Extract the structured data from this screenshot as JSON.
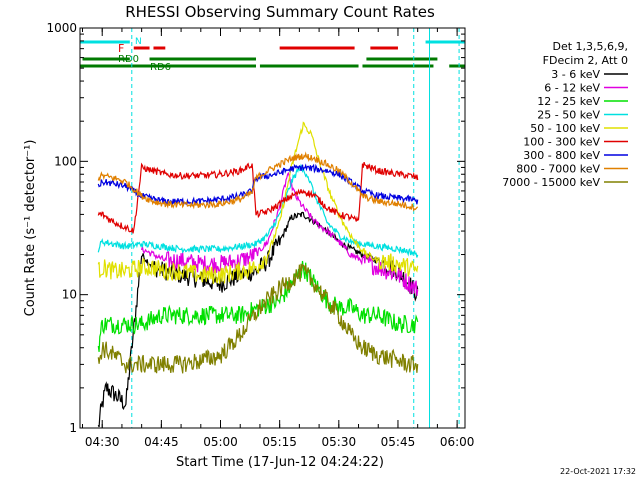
{
  "chart_data": {
    "type": "line",
    "title": "RHESSI Observing Summary Count Rates",
    "xlabel": "Start Time (17-Jun-12 04:24:22)",
    "ylabel": "Count Rate (s⁻¹ detector⁻¹)",
    "xlim": [
      "04:24:22",
      "06:02:00"
    ],
    "ylim": [
      1,
      1000
    ],
    "yscale": "log",
    "x_ticks": [
      "04:30",
      "04:45",
      "05:00",
      "05:15",
      "05:30",
      "05:45",
      "06:00"
    ],
    "y_ticks": [
      "1",
      "10",
      "100",
      "1000"
    ],
    "grid": false,
    "legend_header": [
      "Det 1,3,5,6,9,",
      "FDecim 2, Att 0"
    ],
    "legend_position": "right",
    "footer_date": "22-Oct-2021 17:32",
    "flags": {
      "labels": [
        "N",
        "F",
        "RD0",
        "RD6"
      ],
      "night_color": "#00e0e0",
      "flare_color": "#e00000",
      "decim_color": "#007a00",
      "night_segments": [
        [
          "04:24:22",
          "04:37:00"
        ],
        [
          "05:52:00",
          "06:02:00"
        ]
      ],
      "flare_segments": [
        [
          "04:38:00",
          "04:42:00"
        ],
        [
          "04:43:00",
          "04:46:00"
        ],
        [
          "05:15:00",
          "05:34:00"
        ],
        [
          "05:38:00",
          "05:45:00"
        ]
      ],
      "rd0_segments": [
        [
          "04:25:00",
          "04:37:00"
        ],
        [
          "04:42:00",
          "05:09:00"
        ],
        [
          "05:37:00",
          "05:55:00"
        ]
      ],
      "rd6_segments": [
        [
          "04:24:22",
          "05:09:00"
        ],
        [
          "05:10:00",
          "05:35:00"
        ],
        [
          "05:36:00",
          "05:54:00"
        ],
        [
          "05:58:00",
          "06:02:00"
        ]
      ]
    },
    "vlines": {
      "solid": [
        "04:24:22",
        "05:53:00",
        "06:02:00"
      ],
      "dashed": [
        "04:37:30",
        "05:49:00",
        "06:00:30"
      ]
    },
    "series": [
      {
        "name": "3 - 6 keV",
        "color": "#000000",
        "x": [
          "04:29",
          "04:30",
          "04:31",
          "04:33",
          "04:36",
          "04:40",
          "04:43",
          "04:46",
          "04:50",
          "04:55",
          "05:00",
          "05:05",
          "05:09",
          "05:12",
          "05:15",
          "05:18",
          "05:21",
          "05:24",
          "05:27",
          "05:30",
          "05:33",
          "05:36",
          "05:40",
          "05:45",
          "05:48",
          "05:50"
        ],
        "y": [
          1,
          1.5,
          2,
          1.8,
          1.5,
          20,
          16,
          15,
          14,
          13,
          12,
          14,
          15,
          18,
          25,
          38,
          40,
          35,
          30,
          25,
          22,
          20,
          18,
          15,
          12,
          10
        ]
      },
      {
        "name": "6 - 12 keV",
        "color": "#e000e0",
        "x": [
          "04:40",
          "04:43",
          "04:46",
          "04:50",
          "04:55",
          "05:00",
          "05:05",
          "05:09",
          "05:12",
          "05:15",
          "05:17",
          "05:19",
          "05:21",
          "05:24",
          "05:27",
          "05:30",
          "05:33",
          "05:36",
          "05:40",
          "05:45",
          "05:48",
          "05:50"
        ],
        "y": [
          22,
          20,
          18,
          18,
          17,
          17,
          18,
          20,
          25,
          45,
          80,
          55,
          45,
          35,
          30,
          25,
          20,
          18,
          16,
          14,
          12,
          11
        ]
      },
      {
        "name": "12 - 25 keV",
        "color": "#00e000",
        "x": [
          "04:29",
          "04:30",
          "04:33",
          "04:36",
          "04:40",
          "04:45",
          "04:50",
          "04:55",
          "05:00",
          "05:05",
          "05:10",
          "05:15",
          "05:18",
          "05:21",
          "05:24",
          "05:27",
          "05:30",
          "05:33",
          "05:36",
          "05:40",
          "05:45",
          "05:48",
          "05:50"
        ],
        "y": [
          4,
          6,
          6,
          6,
          6,
          7,
          7,
          7,
          7,
          7,
          8,
          9,
          12,
          16,
          12,
          9,
          8,
          8,
          7,
          7,
          6,
          6,
          6
        ]
      },
      {
        "name": "25 - 50 keV",
        "color": "#00e0e0",
        "x": [
          "04:29",
          "04:30",
          "04:33",
          "04:36",
          "04:40",
          "04:45",
          "04:50",
          "04:55",
          "05:00",
          "05:05",
          "05:09",
          "05:12",
          "05:15",
          "05:18",
          "05:20",
          "05:22",
          "05:24",
          "05:27",
          "05:30",
          "05:33",
          "05:36",
          "05:40",
          "05:45",
          "05:48",
          "05:50"
        ],
        "y": [
          22,
          25,
          24,
          23,
          24,
          23,
          22,
          22,
          22,
          23,
          24,
          28,
          40,
          70,
          90,
          80,
          55,
          35,
          28,
          25,
          24,
          23,
          22,
          21,
          20
        ]
      },
      {
        "name": "50 - 100 keV",
        "color": "#e0e000",
        "x": [
          "04:29",
          "04:30",
          "04:33",
          "04:36",
          "04:40",
          "04:43",
          "04:46",
          "04:50",
          "04:55",
          "05:00",
          "05:05",
          "05:09",
          "05:12",
          "05:15",
          "05:18",
          "05:20",
          "05:21",
          "05:23",
          "05:25",
          "05:28",
          "05:31",
          "05:34",
          "05:37",
          "05:40",
          "05:45",
          "05:48",
          "05:50"
        ],
        "y": [
          15,
          16,
          15,
          15,
          16,
          16,
          15,
          15,
          14,
          14,
          15,
          16,
          20,
          35,
          90,
          150,
          190,
          160,
          100,
          55,
          35,
          25,
          20,
          18,
          17,
          16,
          15
        ]
      },
      {
        "name": "100 - 300 keV",
        "color": "#e00000",
        "x": [
          "04:29",
          "04:30",
          "04:33",
          "04:36",
          "04:38",
          "04:40",
          "04:43",
          "04:46",
          "04:50",
          "04:55",
          "05:00",
          "05:05",
          "05:08",
          "05:09",
          "05:12",
          "05:15",
          "05:18",
          "05:21",
          "05:24",
          "05:27",
          "05:30",
          "05:33",
          "05:35",
          "05:36",
          "05:40",
          "05:45",
          "05:48",
          "05:50"
        ],
        "y": [
          40,
          40,
          35,
          32,
          30,
          90,
          85,
          80,
          78,
          78,
          80,
          85,
          95,
          40,
          42,
          48,
          55,
          60,
          55,
          45,
          40,
          38,
          35,
          95,
          85,
          80,
          78,
          75
        ]
      },
      {
        "name": "300 - 800 keV",
        "color": "#0000e0",
        "x": [
          "04:29",
          "04:30",
          "04:33",
          "04:36",
          "04:40",
          "04:43",
          "04:46",
          "04:50",
          "04:55",
          "05:00",
          "05:05",
          "05:08",
          "05:09",
          "05:12",
          "05:15",
          "05:18",
          "05:21",
          "05:24",
          "05:27",
          "05:30",
          "05:33",
          "05:36",
          "05:40",
          "05:45",
          "05:48",
          "05:50"
        ],
        "y": [
          65,
          70,
          68,
          65,
          55,
          52,
          50,
          50,
          50,
          52,
          55,
          60,
          75,
          78,
          82,
          88,
          90,
          88,
          85,
          80,
          70,
          60,
          55,
          53,
          52,
          50
        ]
      },
      {
        "name": "800 - 7000 keV",
        "color": "#e08000",
        "x": [
          "04:29",
          "04:30",
          "04:33",
          "04:36",
          "04:40",
          "04:43",
          "04:46",
          "04:50",
          "04:55",
          "05:00",
          "05:05",
          "05:08",
          "05:09",
          "05:12",
          "05:15",
          "05:18",
          "05:21",
          "05:24",
          "05:27",
          "05:30",
          "05:33",
          "05:36",
          "05:40",
          "05:45",
          "05:48",
          "05:50"
        ],
        "y": [
          75,
          78,
          75,
          70,
          55,
          50,
          48,
          47,
          47,
          48,
          52,
          58,
          75,
          85,
          95,
          105,
          110,
          105,
          95,
          85,
          70,
          55,
          50,
          48,
          46,
          45
        ]
      },
      {
        "name": "7000 - 15000 keV",
        "color": "#808000",
        "x": [
          "04:29",
          "04:30",
          "04:33",
          "04:36",
          "04:40",
          "04:45",
          "04:50",
          "04:55",
          "05:00",
          "05:05",
          "05:10",
          "05:15",
          "05:18",
          "05:21",
          "05:24",
          "05:27",
          "05:30",
          "05:33",
          "05:36",
          "05:40",
          "05:45",
          "05:48",
          "05:50"
        ],
        "y": [
          3,
          4,
          3.5,
          3,
          3,
          3,
          3,
          3.2,
          3.5,
          5,
          8,
          11,
          13,
          15,
          12,
          9,
          7,
          5,
          4,
          3.5,
          3.2,
          3,
          3
        ]
      }
    ]
  }
}
